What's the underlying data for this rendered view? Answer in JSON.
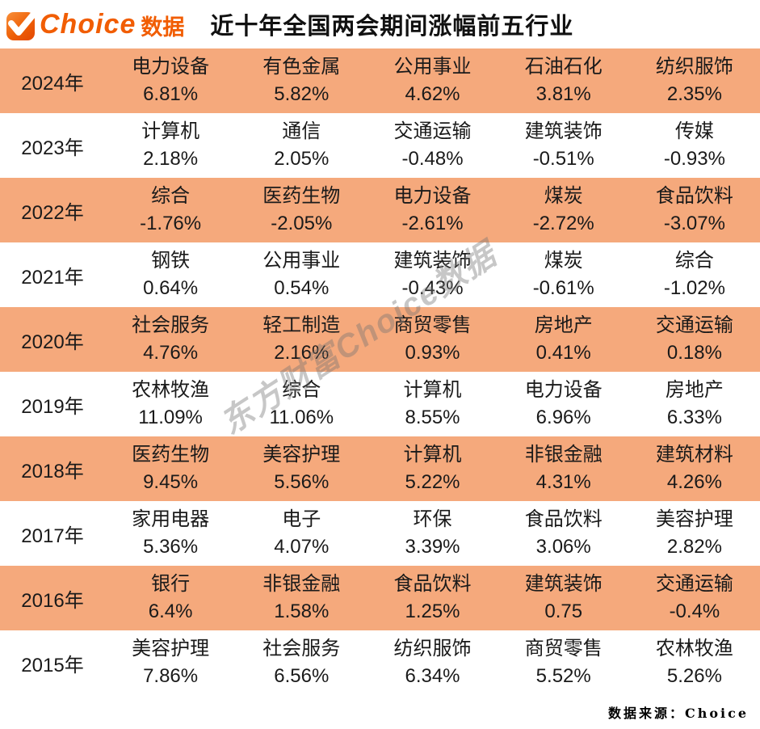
{
  "header": {
    "logo": {
      "brand": "Choice",
      "suffix": "数据"
    },
    "title": "近十年全国两会期间涨幅前五行业"
  },
  "watermark": "东方财富Choice数据",
  "footer": {
    "source": "数据来源：Choice"
  },
  "colors": {
    "highlight_row": "#F5A97C",
    "brand_orange": "#F15D03",
    "text": "#1A1A1A"
  },
  "chart_data": {
    "type": "table",
    "title": "近十年全国两会期间涨幅前五行业",
    "source": "数据来源：Choice",
    "rows": [
      {
        "year": "2024年",
        "highlight": true,
        "cells": [
          {
            "industry": "电力设备",
            "change": "6.81%"
          },
          {
            "industry": "有色金属",
            "change": "5.82%"
          },
          {
            "industry": "公用事业",
            "change": "4.62%"
          },
          {
            "industry": "石油石化",
            "change": "3.81%"
          },
          {
            "industry": "纺织服饰",
            "change": "2.35%"
          }
        ]
      },
      {
        "year": "2023年",
        "highlight": false,
        "cells": [
          {
            "industry": "计算机",
            "change": "2.18%"
          },
          {
            "industry": "通信",
            "change": "2.05%"
          },
          {
            "industry": "交通运输",
            "change": "-0.48%"
          },
          {
            "industry": "建筑装饰",
            "change": "-0.51%"
          },
          {
            "industry": "传媒",
            "change": "-0.93%"
          }
        ]
      },
      {
        "year": "2022年",
        "highlight": true,
        "cells": [
          {
            "industry": "综合",
            "change": "-1.76%"
          },
          {
            "industry": "医药生物",
            "change": "-2.05%"
          },
          {
            "industry": "电力设备",
            "change": "-2.61%"
          },
          {
            "industry": "煤炭",
            "change": "-2.72%"
          },
          {
            "industry": "食品饮料",
            "change": "-3.07%"
          }
        ]
      },
      {
        "year": "2021年",
        "highlight": false,
        "cells": [
          {
            "industry": "钢铁",
            "change": "0.64%"
          },
          {
            "industry": "公用事业",
            "change": "0.54%"
          },
          {
            "industry": "建筑装饰",
            "change": "-0.43%"
          },
          {
            "industry": "煤炭",
            "change": "-0.61%"
          },
          {
            "industry": "综合",
            "change": "-1.02%"
          }
        ]
      },
      {
        "year": "2020年",
        "highlight": true,
        "cells": [
          {
            "industry": "社会服务",
            "change": "4.76%"
          },
          {
            "industry": "轻工制造",
            "change": "2.16%"
          },
          {
            "industry": "商贸零售",
            "change": "0.93%"
          },
          {
            "industry": "房地产",
            "change": "0.41%"
          },
          {
            "industry": "交通运输",
            "change": "0.18%"
          }
        ]
      },
      {
        "year": "2019年",
        "highlight": false,
        "cells": [
          {
            "industry": "农林牧渔",
            "change": "11.09%"
          },
          {
            "industry": "综合",
            "change": "11.06%"
          },
          {
            "industry": "计算机",
            "change": "8.55%"
          },
          {
            "industry": "电力设备",
            "change": "6.96%"
          },
          {
            "industry": "房地产",
            "change": "6.33%"
          }
        ]
      },
      {
        "year": "2018年",
        "highlight": true,
        "cells": [
          {
            "industry": "医药生物",
            "change": "9.45%"
          },
          {
            "industry": "美容护理",
            "change": "5.56%"
          },
          {
            "industry": "计算机",
            "change": "5.22%"
          },
          {
            "industry": "非银金融",
            "change": "4.31%"
          },
          {
            "industry": "建筑材料",
            "change": "4.26%"
          }
        ]
      },
      {
        "year": "2017年",
        "highlight": false,
        "cells": [
          {
            "industry": "家用电器",
            "change": "5.36%"
          },
          {
            "industry": "电子",
            "change": "4.07%"
          },
          {
            "industry": "环保",
            "change": "3.39%"
          },
          {
            "industry": "食品饮料",
            "change": "3.06%"
          },
          {
            "industry": "美容护理",
            "change": "2.82%"
          }
        ]
      },
      {
        "year": "2016年",
        "highlight": true,
        "cells": [
          {
            "industry": "银行",
            "change": "6.4%"
          },
          {
            "industry": "非银金融",
            "change": "1.58%"
          },
          {
            "industry": "食品饮料",
            "change": "1.25%"
          },
          {
            "industry": "建筑装饰",
            "change": "0.75"
          },
          {
            "industry": "交通运输",
            "change": "-0.4%"
          }
        ]
      },
      {
        "year": "2015年",
        "highlight": false,
        "cells": [
          {
            "industry": "美容护理",
            "change": "7.86%"
          },
          {
            "industry": "社会服务",
            "change": "6.56%"
          },
          {
            "industry": "纺织服饰",
            "change": "6.34%"
          },
          {
            "industry": "商贸零售",
            "change": "5.52%"
          },
          {
            "industry": "农林牧渔",
            "change": "5.26%"
          }
        ]
      }
    ]
  }
}
